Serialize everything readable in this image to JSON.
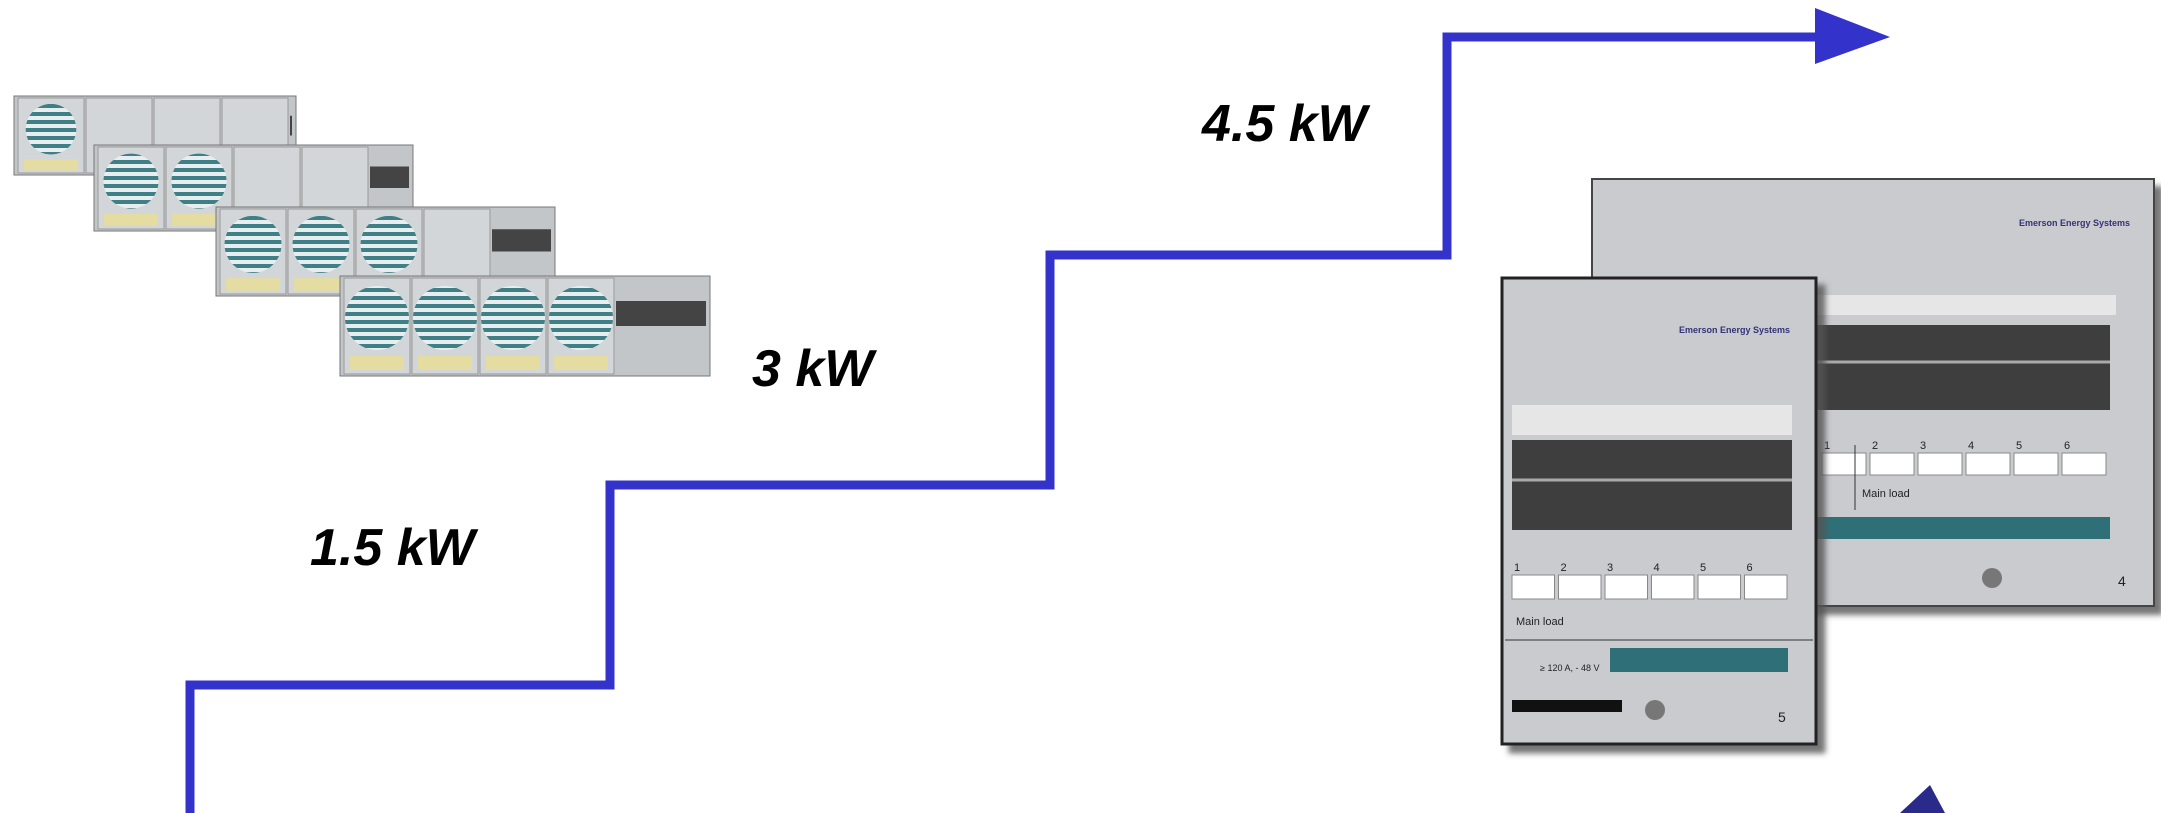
{
  "steps": {
    "first": "1.5 kW",
    "second": "3 kW",
    "third": "4.5 kW"
  },
  "front_panel": {
    "brand": "Emerson Energy Systems",
    "circuit_numbers": [
      "1",
      "2",
      "3",
      "4",
      "5",
      "6"
    ],
    "load_label": "Main load",
    "rating": "≥ 120 A, - 48 V",
    "panel_number": "5"
  },
  "back_panel": {
    "brand": "Emerson Energy Systems",
    "circuit_numbers": [
      "1",
      "2",
      "3",
      "4",
      "5",
      "6"
    ],
    "load_label": "Main load",
    "panel_number": "4"
  }
}
